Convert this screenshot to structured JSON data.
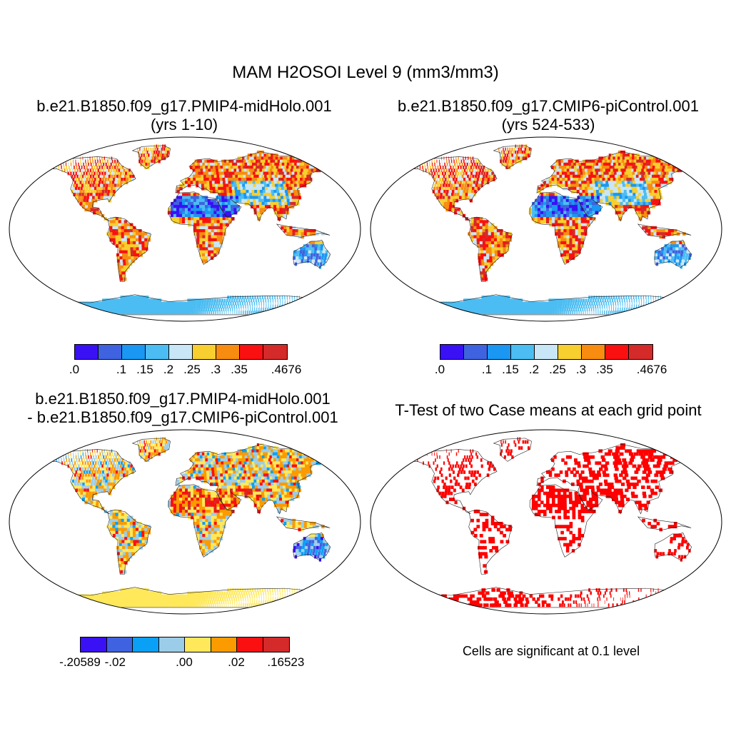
{
  "title": "MAM H2OSOI Level 9 (mm3/mm3)",
  "panels": [
    {
      "id": "p1",
      "title_line1": "b.e21.B1850.f09_g17.PMIP4-midHolo.001",
      "title_line2": "(yrs 1-10)"
    },
    {
      "id": "p2",
      "title_line1": "b.e21.B1850.f09_g17.CMIP6-piControl.001",
      "title_line2": "(yrs 524-533)"
    },
    {
      "id": "p3",
      "title_line1": "b.e21.B1850.f09_g17.PMIP4-midHolo.001",
      "title_line2": "- b.e21.B1850.f09_g17.CMIP6-piControl.001"
    },
    {
      "id": "p4",
      "title_line1": "T-Test of two Case means at each grid point"
    }
  ],
  "colorbar_abs": {
    "colors": [
      "#3a10f5",
      "#3f63e0",
      "#1a97f2",
      "#4cbdf2",
      "#c8e6f5",
      "#f7cf2f",
      "#f88c10",
      "#fa1010",
      "#d42a2a"
    ],
    "labels": [
      ".0",
      ".1",
      ".15",
      ".2",
      ".25",
      ".3",
      ".35",
      ".4676"
    ]
  },
  "colorbar_diff": {
    "colors": [
      "#3a10f5",
      "#3f63e0",
      "#0aa0f5",
      "#9ccde8",
      "#ffe85a",
      "#fb9b00",
      "#fa1010",
      "#d42a2a"
    ],
    "labels": [
      "-.20589",
      "-.02",
      ".00",
      ".02",
      ".16523"
    ]
  },
  "significance_note": "Cells are significant at 0.1 level",
  "chart_data": [
    {
      "type": "heatmap",
      "title": "b.e21.B1850.f09_g17.PMIP4-midHolo.001 (yrs 1-10)",
      "variable": "H2OSOI Level 9",
      "season": "MAM",
      "units": "mm3/mm3",
      "range": [
        0,
        0.4676
      ],
      "levels": [
        0,
        0.1,
        0.15,
        0.2,
        0.25,
        0.3,
        0.35,
        0.4676
      ]
    },
    {
      "type": "heatmap",
      "title": "b.e21.B1850.f09_g17.CMIP6-piControl.001 (yrs 524-533)",
      "variable": "H2OSOI Level 9",
      "season": "MAM",
      "units": "mm3/mm3",
      "range": [
        0,
        0.4676
      ],
      "levels": [
        0,
        0.1,
        0.15,
        0.2,
        0.25,
        0.3,
        0.35,
        0.4676
      ]
    },
    {
      "type": "heatmap",
      "title": "b.e21.B1850.f09_g17.PMIP4-midHolo.001 - b.e21.B1850.f09_g17.CMIP6-piControl.001",
      "range": [
        -0.20589,
        0.16523
      ],
      "levels": [
        -0.20589,
        -0.02,
        0.0,
        0.02,
        0.16523
      ]
    },
    {
      "type": "heatmap",
      "title": "T-Test of two Case means at each grid point",
      "note": "Cells are significant at 0.1 level"
    }
  ]
}
